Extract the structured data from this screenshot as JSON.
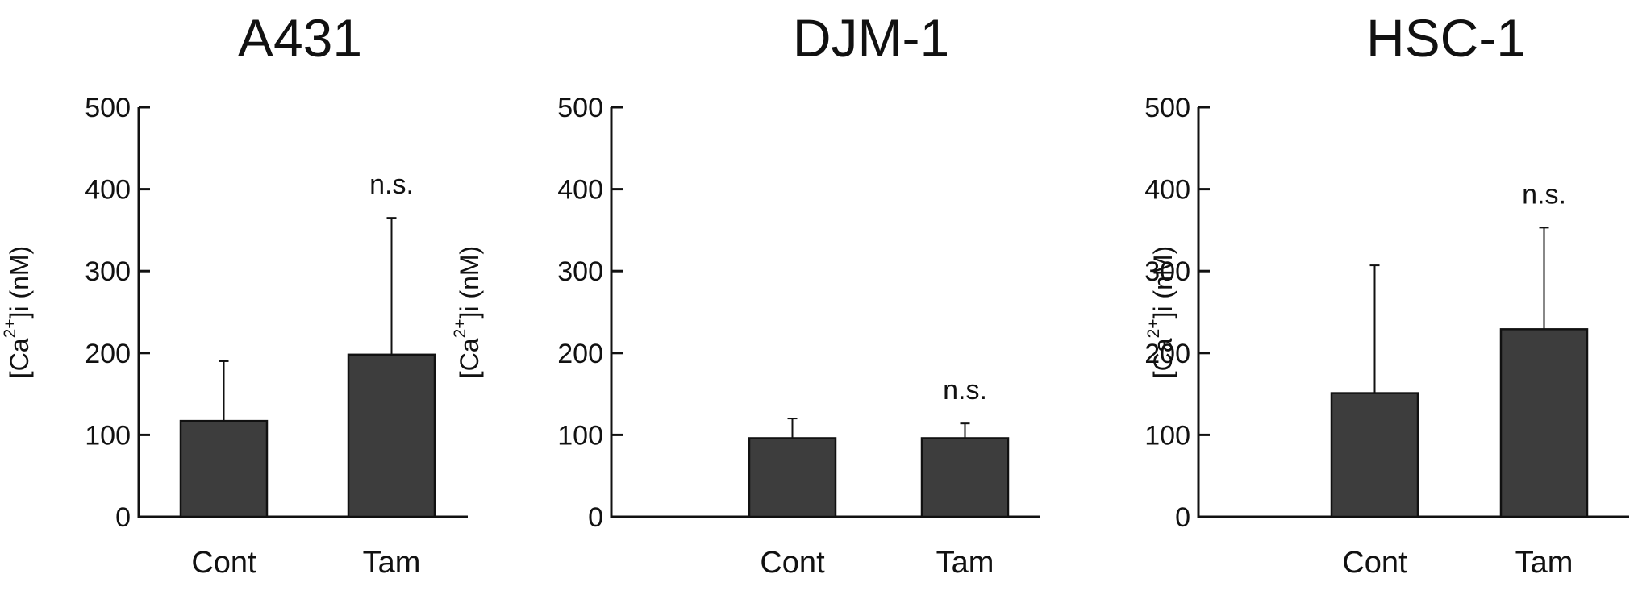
{
  "colors": {
    "bar_fill": "#3d3d3d",
    "bar_stroke": "#111111",
    "axis": "#111111",
    "background": "#ffffff"
  },
  "chart_data": [
    {
      "type": "bar",
      "title": "A431",
      "ylabel": "[Ca2+]i (nM)",
      "ylabel_parts": {
        "prefix": "[Ca",
        "sup": "2+",
        "suffix": "]i (nM)"
      },
      "xlabel": "",
      "categories": [
        "Cont",
        "Tam"
      ],
      "values": [
        117,
        198
      ],
      "error": [
        73,
        167
      ],
      "annotations": [
        "",
        "n.s."
      ],
      "ylim": [
        0,
        500
      ],
      "yticks": [
        0,
        100,
        200,
        300,
        400,
        500
      ],
      "grid": false,
      "legend": false
    },
    {
      "type": "bar",
      "title": "DJM-1",
      "ylabel": "[Ca2+]i (nM)",
      "ylabel_parts": {
        "prefix": "[Ca",
        "sup": "2+",
        "suffix": "]i (nM)"
      },
      "xlabel": "",
      "categories": [
        "Cont",
        "Tam"
      ],
      "values": [
        96,
        96
      ],
      "error": [
        24,
        18
      ],
      "annotations": [
        "",
        "n.s."
      ],
      "ylim": [
        0,
        500
      ],
      "yticks": [
        0,
        100,
        200,
        300,
        400,
        500
      ],
      "grid": false,
      "legend": false
    },
    {
      "type": "bar",
      "title": "HSC-1",
      "ylabel": "[Ca2+]i (nM)",
      "ylabel_parts": {
        "prefix": "[Ca",
        "sup": "2+",
        "suffix": "]i (nM)"
      },
      "xlabel": "",
      "categories": [
        "Cont",
        "Tam"
      ],
      "values": [
        151,
        229
      ],
      "error": [
        156,
        124
      ],
      "annotations": [
        "",
        "n.s."
      ],
      "ylim": [
        0,
        500
      ],
      "yticks": [
        0,
        100,
        200,
        300,
        400,
        500
      ],
      "grid": false,
      "legend": false
    }
  ]
}
